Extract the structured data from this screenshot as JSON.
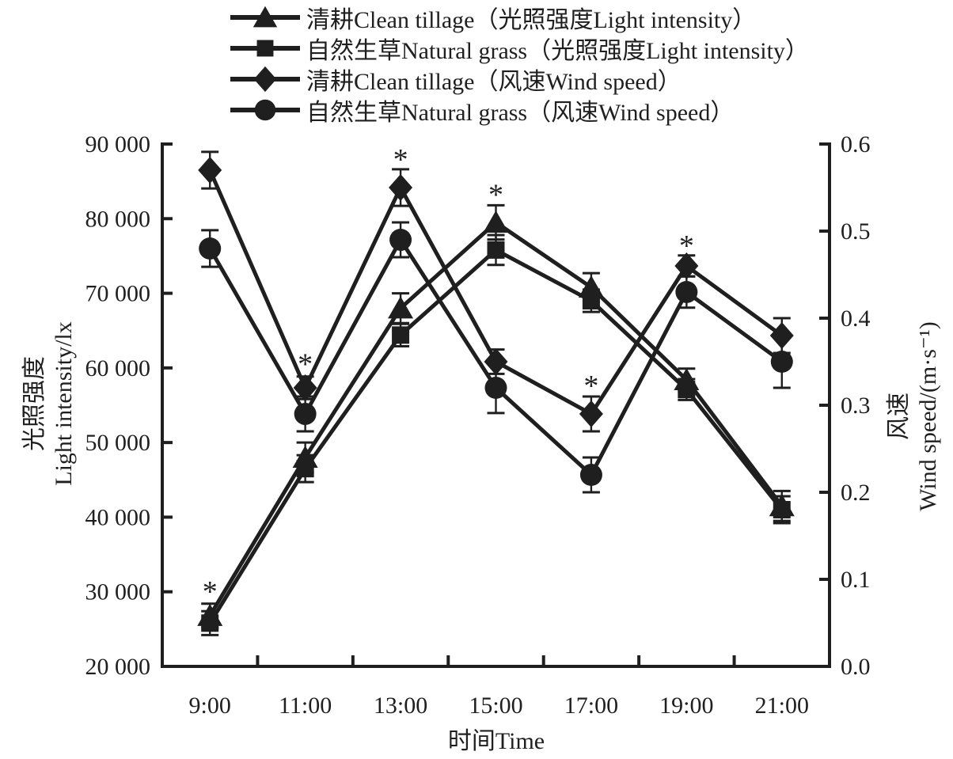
{
  "figure": {
    "background": "#ffffff",
    "ink_color": "#1f1f1f"
  },
  "legend": {
    "items": [
      {
        "marker": "triangle",
        "label": "清耕Clean tillage（光照强度Light intensity）"
      },
      {
        "marker": "square",
        "label": "自然生草Natural grass（光照强度Light intensity）"
      },
      {
        "marker": "diamond",
        "label": "清耕Clean tillage（风速Wind speed）"
      },
      {
        "marker": "circle",
        "label": "自然生草Natural grass（风速Wind speed）"
      }
    ]
  },
  "chart_data": {
    "type": "line",
    "categories": [
      "9:00",
      "11:00",
      "13:00",
      "15:00",
      "17:00",
      "19:00",
      "21:00"
    ],
    "x_title": "时间Time",
    "grid": false,
    "legend_position": "top",
    "left_axis": {
      "title_zh": "光照强度",
      "title_en": "Light intensity/lx",
      "min": 20000,
      "max": 90000,
      "tick_labels": [
        "20 000",
        "30 000",
        "40 000",
        "50 000",
        "60 000",
        "70 000",
        "80 000",
        "90 000"
      ]
    },
    "right_axis": {
      "title_zh": "风速",
      "title_en": "Wind speed/(m·s⁻¹)",
      "min": 0,
      "max": 0.6,
      "tick_labels": [
        "0.0",
        "0.1",
        "0.2",
        "0.3",
        "0.4",
        "0.5",
        "0.6"
      ]
    },
    "series": [
      {
        "name": "清耕Clean tillage（光照强度Light intensity）",
        "axis": "left",
        "marker": "triangle",
        "values": [
          26800,
          48000,
          68000,
          79500,
          70800,
          58400,
          41500
        ],
        "errors": [
          1600,
          2000,
          2000,
          2300,
          1900,
          1500,
          2000
        ]
      },
      {
        "name": "自然生草Natural grass（光照强度Light intensity）",
        "axis": "left",
        "marker": "square",
        "values": [
          25800,
          46500,
          64400,
          75800,
          69000,
          57100,
          41000
        ],
        "errors": [
          1600,
          1800,
          1500,
          2000,
          1500,
          1400,
          1800
        ]
      },
      {
        "name": "清耕Clean tillage（风速Wind speed）",
        "axis": "right",
        "marker": "diamond",
        "values": [
          0.57,
          0.32,
          0.55,
          0.35,
          0.29,
          0.46,
          0.38
        ],
        "errors": [
          0.021,
          0.013,
          0.021,
          0.014,
          0.02,
          0.012,
          0.02
        ]
      },
      {
        "name": "自然生草Natural grass（风速Wind speed）",
        "axis": "right",
        "marker": "circle",
        "values": [
          0.48,
          0.29,
          0.49,
          0.32,
          0.22,
          0.43,
          0.35
        ],
        "errors": [
          0.021,
          0.02,
          0.02,
          0.029,
          0.02,
          0.018,
          0.03
        ]
      }
    ],
    "annotations": [
      {
        "symbol": "*",
        "category": "9:00",
        "axis": "left",
        "value": 30800
      },
      {
        "symbol": "*",
        "category": "11:00",
        "axis": "right",
        "value": 0.354
      },
      {
        "symbol": "*",
        "category": "13:00",
        "axis": "right",
        "value": 0.589
      },
      {
        "symbol": "*",
        "category": "15:00",
        "axis": "left",
        "value": 84000
      },
      {
        "symbol": "*",
        "category": "17:00",
        "axis": "right",
        "value": 0.329
      },
      {
        "symbol": "*",
        "category": "19:00",
        "axis": "right",
        "value": 0.49
      }
    ]
  }
}
